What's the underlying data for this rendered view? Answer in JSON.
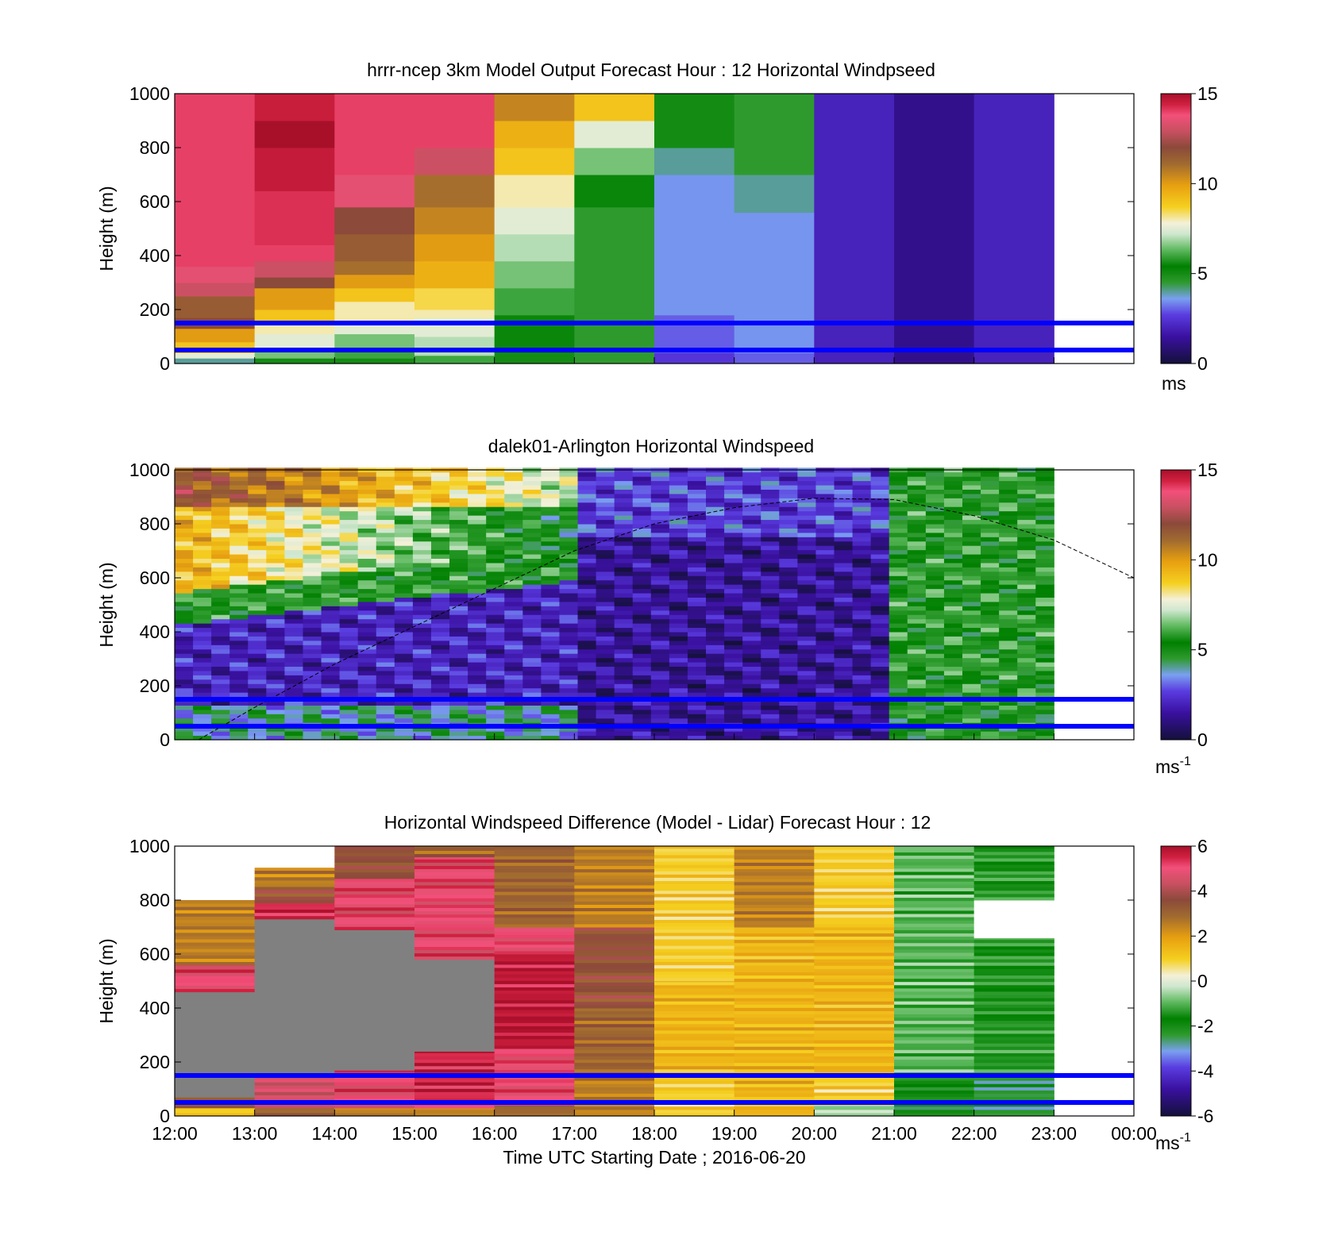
{
  "figure": {
    "xlabel": "Time UTC  Starting Date ; 2016-06-20",
    "x_ticks": [
      "12:00",
      "13:00",
      "14:00",
      "15:00",
      "16:00",
      "17:00",
      "18:00",
      "19:00",
      "20:00",
      "21:00",
      "22:00",
      "23:00",
      "00:00"
    ],
    "reference_lines_m": [
      150,
      50
    ],
    "reference_line_color": "#0000ff"
  },
  "chart_data": [
    {
      "id": "model",
      "type": "heatmap",
      "title": "hrrr-ncep 3km Model Output   Forecast Hour : 12 Horizontal Windpseed",
      "ylabel": "Height (m)",
      "ylim": [
        0,
        1000
      ],
      "y_ticks": [
        "0",
        "200",
        "400",
        "600",
        "800",
        "1000"
      ],
      "colorbar": {
        "range": [
          0,
          15
        ],
        "ticks": [
          "0",
          "5",
          "10",
          "15"
        ],
        "unit_label": "ms",
        "unit_sup": ""
      },
      "data_note": "hourly columns 12:00-23:00, windspeed m/s per height band",
      "columns": [
        {
          "start": "12:00",
          "profile": [
            [
              0,
              20,
              4
            ],
            [
              20,
              40,
              7.5
            ],
            [
              40,
              80,
              9
            ],
            [
              80,
              130,
              10
            ],
            [
              130,
              170,
              12
            ],
            [
              170,
              250,
              11.5
            ],
            [
              250,
              300,
              13
            ],
            [
              300,
              360,
              13.5
            ],
            [
              360,
              450,
              14
            ],
            [
              450,
              1000,
              14
            ]
          ]
        },
        {
          "start": "13:00",
          "profile": [
            [
              0,
              20,
              5
            ],
            [
              20,
              60,
              6.5
            ],
            [
              60,
              110,
              7.5
            ],
            [
              110,
              150,
              8
            ],
            [
              150,
              200,
              9
            ],
            [
              200,
              280,
              10
            ],
            [
              280,
              320,
              12
            ],
            [
              320,
              380,
              13
            ],
            [
              380,
              440,
              14
            ],
            [
              440,
              640,
              14.2
            ],
            [
              640,
              800,
              14.6
            ],
            [
              800,
              900,
              15
            ],
            [
              900,
              1000,
              14.5
            ]
          ]
        },
        {
          "start": "14:00",
          "profile": [
            [
              0,
              20,
              5
            ],
            [
              20,
              60,
              6
            ],
            [
              60,
              110,
              6.5
            ],
            [
              110,
              160,
              7.5
            ],
            [
              160,
              230,
              8
            ],
            [
              230,
              280,
              9
            ],
            [
              280,
              330,
              10
            ],
            [
              330,
              380,
              11
            ],
            [
              380,
              480,
              11.5
            ],
            [
              480,
              580,
              12
            ],
            [
              580,
              700,
              13.5
            ],
            [
              700,
              800,
              14
            ],
            [
              800,
              900,
              14
            ],
            [
              900,
              1000,
              14
            ]
          ]
        },
        {
          "start": "15:00",
          "profile": [
            [
              0,
              30,
              6
            ],
            [
              30,
              100,
              7
            ],
            [
              100,
              170,
              7.5
            ],
            [
              170,
              200,
              8
            ],
            [
              200,
              280,
              8.5
            ],
            [
              280,
              380,
              9.5
            ],
            [
              380,
              480,
              10
            ],
            [
              480,
              580,
              10.5
            ],
            [
              580,
              700,
              11
            ],
            [
              700,
              800,
              13
            ],
            [
              800,
              900,
              14
            ],
            [
              900,
              1000,
              14
            ]
          ]
        },
        {
          "start": "16:00",
          "profile": [
            [
              0,
              40,
              5
            ],
            [
              40,
              180,
              5.5
            ],
            [
              180,
              280,
              6
            ],
            [
              280,
              380,
              6.5
            ],
            [
              380,
              480,
              7
            ],
            [
              480,
              580,
              7.5
            ],
            [
              580,
              700,
              8
            ],
            [
              700,
              800,
              9
            ],
            [
              800,
              900,
              9.5
            ],
            [
              900,
              1000,
              10.5
            ]
          ]
        },
        {
          "start": "17:00",
          "profile": [
            [
              0,
              40,
              4.5
            ],
            [
              40,
              120,
              4.5
            ],
            [
              120,
              180,
              4.5
            ],
            [
              180,
              380,
              4.5
            ],
            [
              380,
              580,
              4.5
            ],
            [
              580,
              700,
              5.5
            ],
            [
              700,
              800,
              6.5
            ],
            [
              800,
              900,
              7.5
            ],
            [
              900,
              1000,
              9
            ]
          ]
        },
        {
          "start": "18:00",
          "profile": [
            [
              0,
              40,
              2.5
            ],
            [
              40,
              180,
              3
            ],
            [
              180,
              560,
              3.5
            ],
            [
              560,
              700,
              3.5
            ],
            [
              700,
              800,
              4
            ],
            [
              800,
              900,
              5
            ],
            [
              900,
              1000,
              5
            ]
          ]
        },
        {
          "start": "19:00",
          "profile": [
            [
              0,
              40,
              3
            ],
            [
              40,
              180,
              3.5
            ],
            [
              180,
              560,
              3.5
            ],
            [
              560,
              700,
              4
            ],
            [
              700,
              800,
              4.5
            ],
            [
              800,
              900,
              4.5
            ],
            [
              900,
              1000,
              4.5
            ]
          ]
        },
        {
          "start": "20:00",
          "profile": [
            [
              0,
              1000,
              2
            ]
          ]
        },
        {
          "start": "21:00",
          "profile": [
            [
              0,
              1000,
              1.2
            ]
          ]
        },
        {
          "start": "22:00",
          "profile": [
            [
              0,
              1000,
              2
            ]
          ]
        }
      ]
    },
    {
      "id": "lidar",
      "type": "heatmap",
      "title": "dalek01-Arlington  Horizontal Windspeed",
      "ylabel": "Height (m)",
      "ylim": [
        0,
        1000
      ],
      "y_ticks": [
        "0",
        "200",
        "400",
        "600",
        "800",
        "1000"
      ],
      "colorbar": {
        "range": [
          0,
          15
        ],
        "ticks": [
          "0",
          "5",
          "10",
          "15"
        ],
        "unit_label": "ms",
        "unit_sup": "-1"
      },
      "data_note": "high-resolution columns; speed varies with jet height",
      "column_step_hours": 0.25,
      "columns_end": "23:00",
      "bl_curve_m": [
        [
          12.3,
          0
        ],
        [
          13,
          120
        ],
        [
          14,
          280
        ],
        [
          15,
          420
        ],
        [
          16,
          560
        ],
        [
          17,
          700
        ],
        [
          18,
          800
        ],
        [
          19,
          860
        ],
        [
          20,
          895
        ],
        [
          21,
          890
        ],
        [
          22,
          830
        ],
        [
          23,
          740
        ],
        [
          24,
          600
        ]
      ]
    },
    {
      "id": "diff",
      "type": "heatmap",
      "title": "Horizontal Windspeed Difference (Model - Lidar) Forecast Hour : 12",
      "ylabel": "Height (m)",
      "ylim": [
        0,
        1000
      ],
      "y_ticks": [
        "0",
        "200",
        "400",
        "600",
        "800",
        "1000"
      ],
      "colorbar": {
        "range": [
          -6,
          6
        ],
        "ticks": [
          "-6",
          "-4",
          "-2",
          "0",
          "2",
          "4",
          "6"
        ],
        "unit_label": "ms",
        "unit_sup": "-1"
      },
      "columns": [
        {
          "start": "12:00",
          "profile": [
            [
              0,
              30,
              1
            ],
            [
              30,
              70,
              3
            ],
            [
              70,
              460,
              "nan"
            ],
            [
              460,
              560,
              5
            ],
            [
              560,
              800,
              2.5
            ]
          ]
        },
        {
          "start": "13:00",
          "profile": [
            [
              0,
              30,
              3
            ],
            [
              30,
              150,
              4.5
            ],
            [
              150,
              730,
              "nan"
            ],
            [
              730,
              790,
              5.5
            ],
            [
              790,
              850,
              3.5
            ],
            [
              850,
              920,
              2.5
            ]
          ]
        },
        {
          "start": "14:00",
          "profile": [
            [
              0,
              30,
              2.5
            ],
            [
              30,
              170,
              5
            ],
            [
              170,
              690,
              "nan"
            ],
            [
              690,
              880,
              5
            ],
            [
              880,
              1000,
              3.5
            ]
          ]
        },
        {
          "start": "15:00",
          "profile": [
            [
              0,
              30,
              2.5
            ],
            [
              30,
              240,
              5.5
            ],
            [
              240,
              580,
              "nan"
            ],
            [
              580,
              960,
              5
            ],
            [
              960,
              1000,
              3
            ]
          ]
        },
        {
          "start": "16:00",
          "profile": [
            [
              0,
              40,
              3
            ],
            [
              40,
              250,
              5
            ],
            [
              250,
              600,
              5.8
            ],
            [
              600,
              700,
              5
            ],
            [
              700,
              1000,
              3
            ]
          ]
        },
        {
          "start": "17:00",
          "profile": [
            [
              0,
              150,
              2.5
            ],
            [
              150,
              400,
              3
            ],
            [
              400,
              700,
              3.5
            ],
            [
              700,
              1000,
              2.5
            ]
          ]
        },
        {
          "start": "18:00",
          "profile": [
            [
              0,
              150,
              1
            ],
            [
              150,
              500,
              1.5
            ],
            [
              500,
              1000,
              1
            ]
          ]
        },
        {
          "start": "19:00",
          "profile": [
            [
              0,
              150,
              1.5
            ],
            [
              150,
              700,
              1.5
            ],
            [
              700,
              1000,
              2.5
            ]
          ]
        },
        {
          "start": "20:00",
          "profile": [
            [
              0,
              40,
              -0.5
            ],
            [
              40,
              150,
              1
            ],
            [
              150,
              700,
              1.5
            ],
            [
              700,
              1000,
              1
            ]
          ]
        },
        {
          "start": "21:00",
          "profile": [
            [
              0,
              150,
              -2
            ],
            [
              150,
              1000,
              -1
            ]
          ]
        },
        {
          "start": "22:00",
          "profile": [
            [
              0,
              150,
              -2.5
            ],
            [
              150,
              660,
              -1.5
            ],
            [
              660,
              800,
              "nan_white"
            ],
            [
              800,
              1000,
              -1.5
            ]
          ]
        }
      ]
    }
  ]
}
